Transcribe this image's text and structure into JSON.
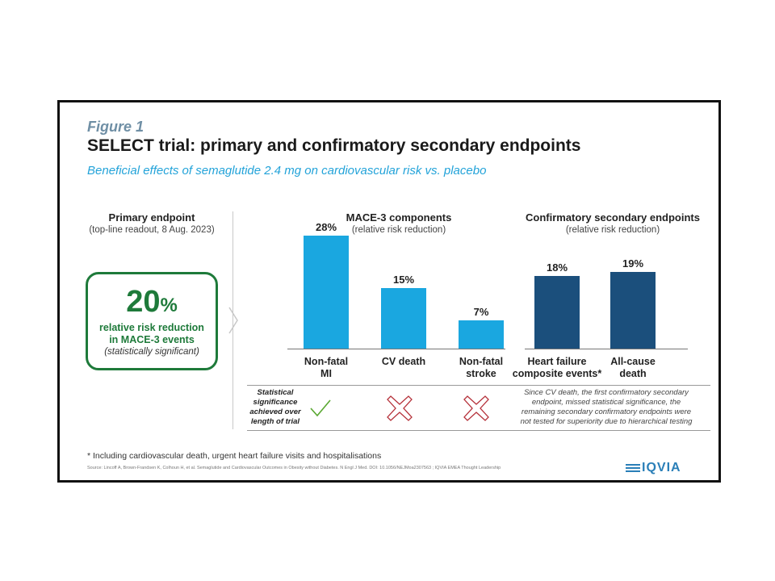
{
  "figure_label": "Figure 1",
  "title": "SELECT trial: primary and confirmatory secondary endpoints",
  "subtitle": "Beneficial effects of semaglutide 2.4 mg on cardiovascular risk vs. placebo",
  "primary": {
    "header": "Primary endpoint",
    "subheader": "(top-line readout, 8 Aug. 2023)",
    "value": "20",
    "unit": "%",
    "line1": "relative risk reduction",
    "line2": "in MACE-3 events",
    "line3": "(statistically significant)"
  },
  "mace": {
    "header": "MACE-3 components",
    "subheader": "(relative risk reduction)"
  },
  "secondary": {
    "header": "Confirmatory secondary endpoints",
    "subheader": "(relative risk reduction)"
  },
  "chart_data": {
    "type": "bar",
    "unit": "%",
    "ylim": [
      0,
      30
    ],
    "groups": [
      {
        "name": "MACE-3 components",
        "color": "#1aa7e0",
        "categories": [
          [
            "Non-fatal",
            "MI"
          ],
          [
            "CV death"
          ],
          [
            "Non-fatal",
            "stroke"
          ]
        ],
        "values": [
          28,
          15,
          7
        ],
        "labels": [
          "28%",
          "15%",
          "7%"
        ]
      },
      {
        "name": "Confirmatory secondary endpoints",
        "color": "#1b4f7c",
        "categories": [
          [
            "Heart failure",
            "composite events*"
          ],
          [
            "All-cause",
            "death"
          ]
        ],
        "values": [
          18,
          19
        ],
        "labels": [
          "18%",
          "19%"
        ]
      }
    ]
  },
  "significance": {
    "row_label": "Statistical significance achieved over length of trial",
    "marks": [
      "check-icon",
      "cross-icon",
      "cross-icon"
    ],
    "check_color": "#5aa832",
    "cross_color": "#b5313a",
    "note": "Since CV death, the first confirmatory secondary endpoint, missed statistical significance, the remaining secondary confirmatory endpoints were not tested for superiority due to hierarchical testing"
  },
  "footnote": "* Including cardiovascular death, urgent heart failure visits and hospitalisations",
  "source": "Source: Lincoff A, Brown-Frandsen K, Colhoun H, et al. Semaglutide and Cardiovascular Outcomes in Obesity without Diabetes. N Engl J Med. DOI: 10.1056/NEJMoa2307563 ; IQVIA EMEA Thought Leadership",
  "logo": "IQVIA"
}
